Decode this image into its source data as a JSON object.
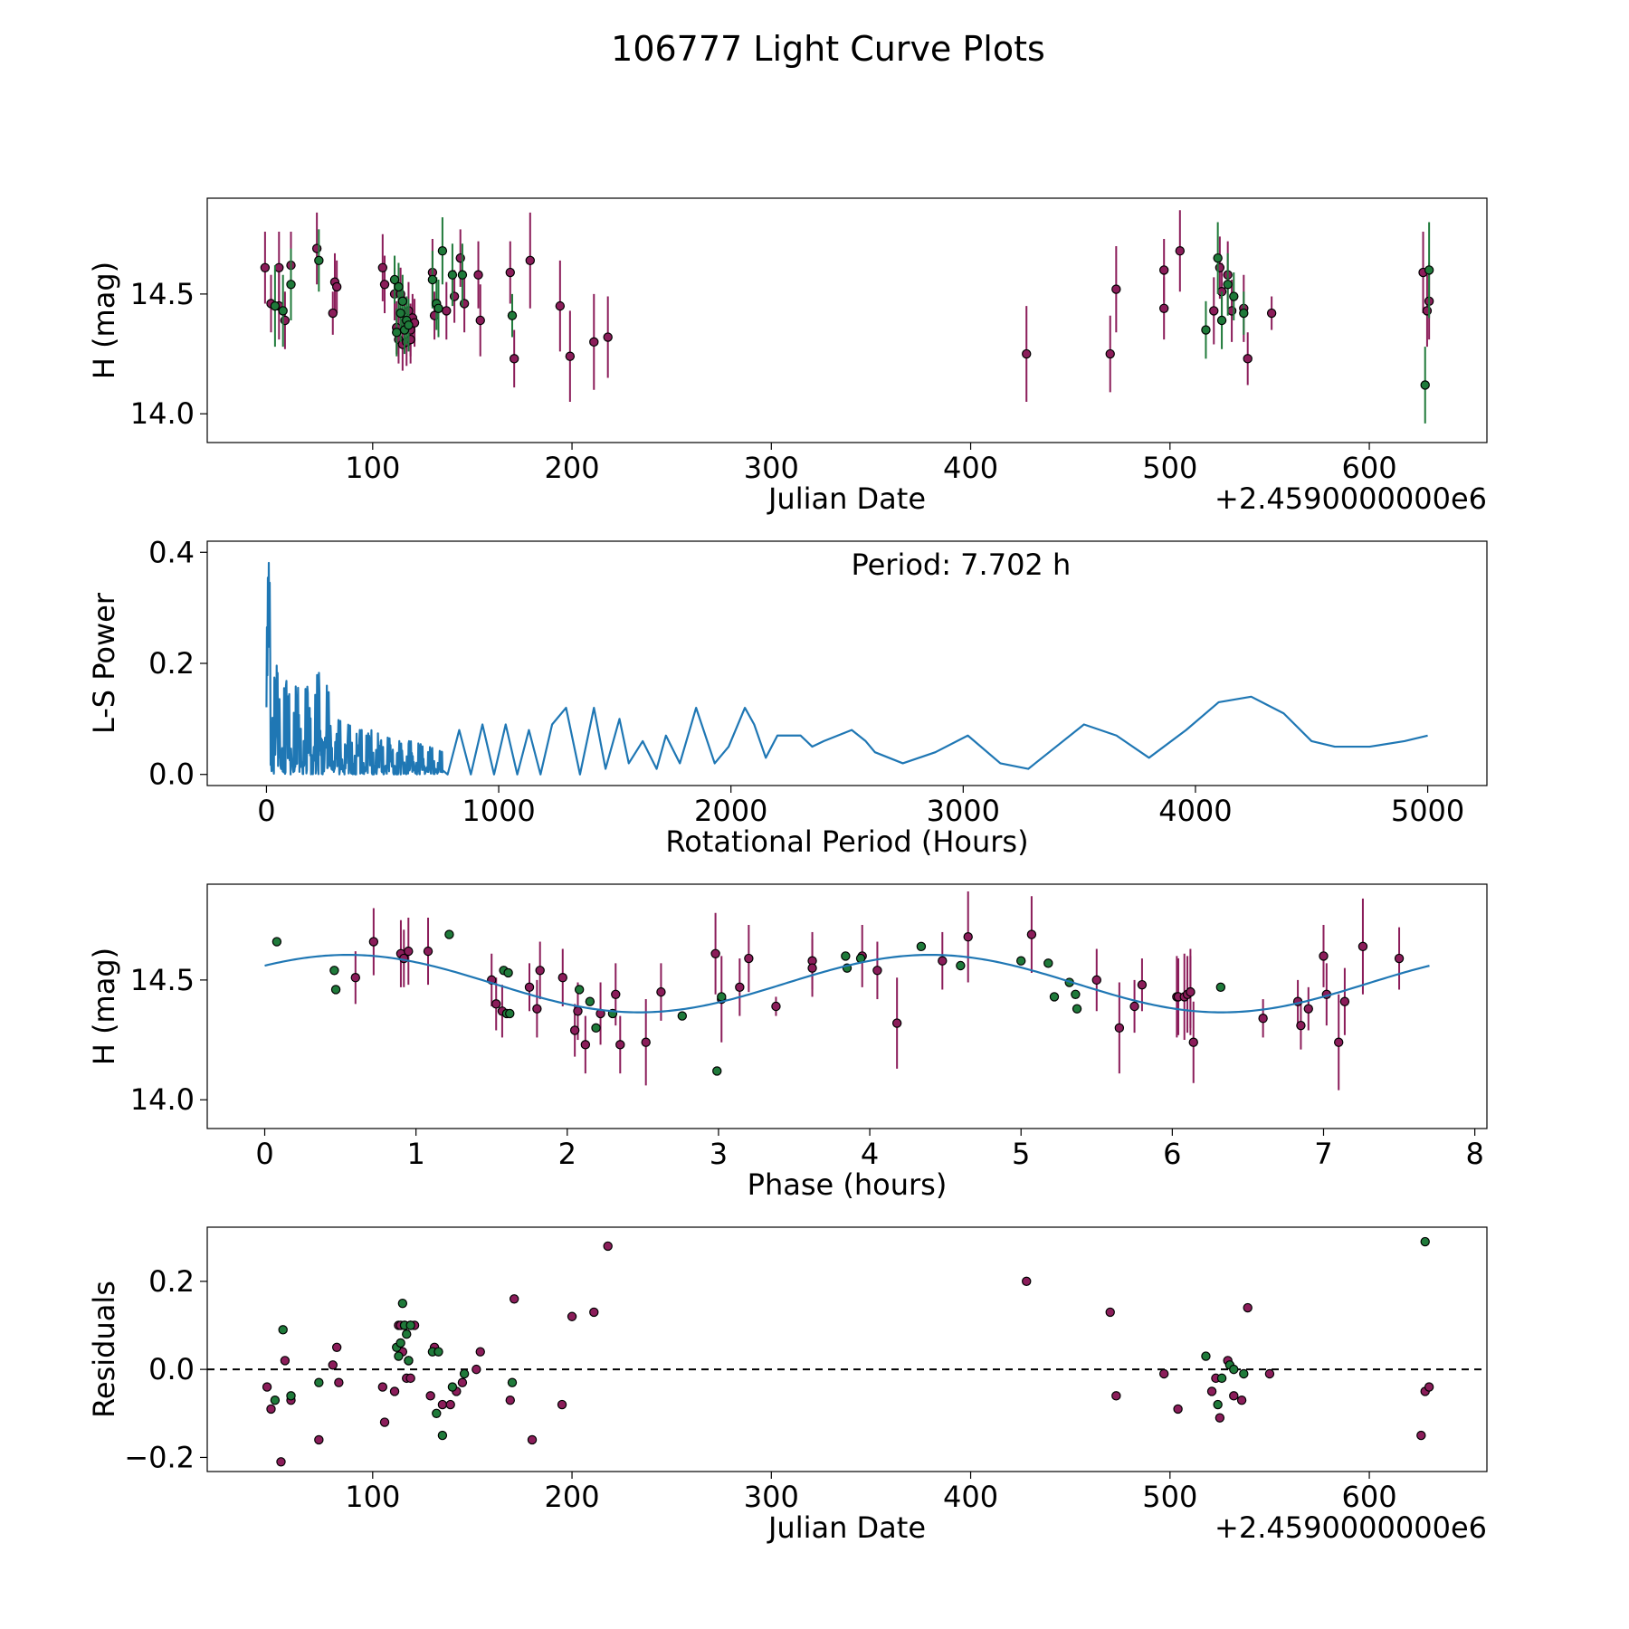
{
  "figure": {
    "title": "106777 Light Curve Plots"
  },
  "chart_data": [
    {
      "type": "scatter",
      "panel": "light-curve",
      "title": "",
      "xlabel": "Julian Date",
      "ylabel": "H (mag)",
      "x_offset_label": "+2.4590000000e6",
      "xlim": [
        17,
        659
      ],
      "ylim": [
        13.88,
        14.9
      ],
      "xticks": [
        100,
        200,
        300,
        400,
        500,
        600
      ],
      "xtick_labels": [
        "100",
        "200",
        "300",
        "400",
        "500",
        "600"
      ],
      "yticks": [
        14.0,
        14.5
      ],
      "ytick_labels": [
        "14.0",
        "14.5"
      ],
      "grid": false,
      "series": [
        {
          "name": "purple",
          "color": "#8b1d5a",
          "x": [
            46,
            49,
            53,
            53,
            56,
            59,
            72,
            80,
            81,
            82,
            105,
            106,
            111,
            112,
            113,
            114,
            115,
            116,
            117,
            118,
            119,
            119,
            120,
            121,
            130,
            131,
            133,
            137,
            141,
            144,
            146,
            153,
            154,
            169,
            171,
            179,
            194,
            199,
            211,
            218,
            428,
            470,
            473,
            497,
            497,
            505,
            522,
            525,
            526,
            529,
            531,
            537,
            539,
            551,
            627,
            629,
            630
          ],
          "y": [
            14.61,
            14.46,
            14.45,
            14.61,
            14.39,
            14.62,
            14.69,
            14.42,
            14.55,
            14.53,
            14.61,
            14.54,
            14.5,
            14.36,
            14.31,
            14.5,
            14.29,
            14.38,
            14.3,
            14.43,
            14.35,
            14.31,
            14.4,
            14.38,
            14.59,
            14.41,
            14.44,
            14.43,
            14.49,
            14.65,
            14.46,
            14.58,
            14.39,
            14.59,
            14.23,
            14.64,
            14.45,
            14.24,
            14.3,
            14.32,
            14.25,
            14.25,
            14.52,
            14.6,
            14.44,
            14.68,
            14.43,
            14.61,
            14.51,
            14.58,
            14.43,
            14.44,
            14.23,
            14.42,
            14.59,
            14.43,
            14.47
          ],
          "yerr": [
            0.15,
            0.12,
            0.14,
            0.15,
            0.12,
            0.14,
            0.15,
            0.09,
            0.12,
            0.11,
            0.14,
            0.12,
            0.11,
            0.11,
            0.1,
            0.11,
            0.11,
            0.11,
            0.1,
            0.12,
            0.11,
            0.1,
            0.1,
            0.1,
            0.14,
            0.1,
            0.12,
            0.12,
            0.11,
            0.12,
            0.12,
            0.14,
            0.15,
            0.13,
            0.12,
            0.2,
            0.19,
            0.19,
            0.2,
            0.17,
            0.2,
            0.16,
            0.18,
            0.13,
            0.13,
            0.17,
            0.14,
            0.13,
            0.12,
            0.14,
            0.13,
            0.14,
            0.11,
            0.07,
            0.17,
            0.15,
            0.16
          ]
        },
        {
          "name": "green",
          "color": "#1f7a3a",
          "x": [
            51,
            55,
            59,
            73,
            111,
            112,
            113,
            114,
            115,
            116,
            117,
            118,
            130,
            132,
            133,
            135,
            140,
            145,
            170,
            518,
            524,
            526,
            529,
            532,
            537,
            628,
            630
          ],
          "y": [
            14.45,
            14.43,
            14.54,
            14.64,
            14.56,
            14.34,
            14.53,
            14.42,
            14.47,
            14.35,
            14.39,
            14.37,
            14.56,
            14.46,
            14.44,
            14.68,
            14.58,
            14.58,
            14.41,
            14.35,
            14.65,
            14.39,
            14.54,
            14.49,
            14.42,
            14.12,
            14.6
          ],
          "yerr": [
            0.17,
            0.15,
            0.15,
            0.13,
            0.1,
            0.1,
            0.1,
            0.12,
            0.11,
            0.1,
            0.1,
            0.11,
            0.12,
            0.11,
            0.12,
            0.14,
            0.13,
            0.13,
            0.09,
            0.12,
            0.15,
            0.12,
            0.13,
            0.1,
            0.09,
            0.16,
            0.2
          ]
        }
      ]
    },
    {
      "type": "line",
      "panel": "periodogram",
      "title": "",
      "xlabel": "Rotational Period (Hours)",
      "ylabel": "L-S Power",
      "annotation": "Period: 7.702 h",
      "xlim": [
        -255,
        5255
      ],
      "ylim": [
        -0.02,
        0.42
      ],
      "xticks": [
        0,
        1000,
        2000,
        3000,
        4000,
        5000
      ],
      "xtick_labels": [
        "0",
        "1000",
        "2000",
        "3000",
        "4000",
        "5000"
      ],
      "yticks": [
        0.0,
        0.2,
        0.4
      ],
      "ytick_labels": [
        "0.0",
        "0.2",
        "0.4"
      ],
      "grid": false,
      "series": [
        {
          "name": "power",
          "color": "#1f77b4",
          "envelope": {
            "x": [
              0,
              8,
              15,
              30,
              50,
              80,
              120,
              160,
              240,
              300,
              350,
              400,
              450,
              500,
              560,
              620,
              700,
              760
            ],
            "y": [
              0.22,
              0.4,
              0.34,
              0.21,
              0.19,
              0.17,
              0.16,
              0.15,
              0.19,
              0.1,
              0.09,
              0.08,
              0.08,
              0.07,
              0.06,
              0.06,
              0.05,
              0.04
            ]
          },
          "x": [
            780,
            830,
            880,
            930,
            980,
            1030,
            1080,
            1130,
            1180,
            1230,
            1290,
            1350,
            1410,
            1460,
            1520,
            1560,
            1620,
            1680,
            1720,
            1780,
            1850,
            1930,
            1990,
            2060,
            2100,
            2150,
            2200,
            2250,
            2300,
            2350,
            2400,
            2460,
            2520,
            2580,
            2620,
            2740,
            2880,
            3020,
            3160,
            3280,
            3400,
            3520,
            3660,
            3800,
            3960,
            4100,
            4240,
            4380,
            4500,
            4600,
            4750,
            4900,
            5000
          ],
          "y": [
            0.0,
            0.08,
            0.0,
            0.09,
            0.0,
            0.09,
            0.0,
            0.08,
            0.0,
            0.09,
            0.12,
            0.0,
            0.12,
            0.01,
            0.1,
            0.02,
            0.06,
            0.01,
            0.07,
            0.02,
            0.12,
            0.02,
            0.05,
            0.12,
            0.09,
            0.03,
            0.07,
            0.07,
            0.07,
            0.05,
            0.06,
            0.07,
            0.08,
            0.06,
            0.04,
            0.02,
            0.04,
            0.07,
            0.02,
            0.01,
            0.05,
            0.09,
            0.07,
            0.03,
            0.08,
            0.13,
            0.14,
            0.11,
            0.06,
            0.05,
            0.05,
            0.06,
            0.07
          ]
        }
      ]
    },
    {
      "type": "scatter",
      "panel": "phase-folded",
      "title": "",
      "xlabel": "Phase (hours)",
      "ylabel": "H (mag)",
      "xlim": [
        -0.38,
        8.08
      ],
      "ylim": [
        13.88,
        14.9
      ],
      "xticks": [
        0,
        1,
        2,
        3,
        4,
        5,
        6,
        7,
        8
      ],
      "xtick_labels": [
        "0",
        "1",
        "2",
        "3",
        "4",
        "5",
        "6",
        "7",
        "8"
      ],
      "yticks": [
        14.0,
        14.5
      ],
      "ytick_labels": [
        "14.0",
        "14.5"
      ],
      "grid": false,
      "model": {
        "name": "fit",
        "color": "#1f77b4",
        "period": 7.702,
        "mean": 14.485,
        "amplitude": 0.12,
        "phase_max": 0.55
      },
      "series": [
        {
          "name": "purple",
          "color": "#8b1d5a",
          "x": [
            0.6,
            0.72,
            0.9,
            0.92,
            0.95,
            1.08,
            1.5,
            1.53,
            1.57,
            1.75,
            1.8,
            1.82,
            1.97,
            2.05,
            2.07,
            2.12,
            2.22,
            2.32,
            2.35,
            2.52,
            2.62,
            2.98,
            3.02,
            3.14,
            3.2,
            3.38,
            3.62,
            3.62,
            3.95,
            4.05,
            4.18,
            4.48,
            4.65,
            5.07,
            5.5,
            5.65,
            5.75,
            5.8,
            6.03,
            6.04,
            6.08,
            6.1,
            6.12,
            6.12,
            6.14,
            6.6,
            6.83,
            6.85,
            6.9,
            7.0,
            7.02,
            7.1,
            7.14,
            7.26,
            7.5
          ],
          "y": [
            14.51,
            14.66,
            14.61,
            14.59,
            14.62,
            14.62,
            14.5,
            14.4,
            14.37,
            14.47,
            14.38,
            14.54,
            14.51,
            14.29,
            14.37,
            14.23,
            14.36,
            14.44,
            14.23,
            14.24,
            14.45,
            14.61,
            14.42,
            14.47,
            14.59,
            14.39,
            14.58,
            14.55,
            14.6,
            14.54,
            14.32,
            14.58,
            14.68,
            14.69,
            14.5,
            14.3,
            14.39,
            14.48,
            14.43,
            14.43,
            14.43,
            14.44,
            14.45,
            14.45,
            14.24,
            14.34,
            14.41,
            14.31,
            14.38,
            14.6,
            14.44,
            14.24,
            14.41,
            14.64,
            14.59
          ],
          "yerr": [
            0.11,
            0.14,
            0.14,
            0.12,
            0.14,
            0.14,
            0.11,
            0.11,
            0.11,
            0.1,
            0.12,
            0.12,
            0.12,
            0.11,
            0.12,
            0.12,
            0.13,
            0.13,
            0.12,
            0.18,
            0.12,
            0.17,
            0.18,
            0.12,
            0.14,
            0.04,
            0.12,
            0.12,
            0.13,
            0.12,
            0.19,
            0.12,
            0.19,
            0.16,
            0.13,
            0.19,
            0.11,
            0.11,
            0.17,
            0.16,
            0.18,
            0.16,
            0.18,
            0.15,
            0.17,
            0.08,
            0.09,
            0.1,
            0.09,
            0.13,
            0.13,
            0.2,
            0.14,
            0.2,
            0.13
          ]
        },
        {
          "name": "green",
          "color": "#1f7a3a",
          "x": [
            0.08,
            0.46,
            0.47,
            1.22,
            1.58,
            1.6,
            1.61,
            1.62,
            2.08,
            2.15,
            2.19,
            2.3,
            2.76,
            2.99,
            3.02,
            3.84,
            3.85,
            3.94,
            4.34,
            4.6,
            5.0,
            5.18,
            5.22,
            5.32,
            5.36,
            5.37,
            6.32
          ],
          "y": [
            14.66,
            14.54,
            14.46,
            14.69,
            14.54,
            14.36,
            14.53,
            14.36,
            14.46,
            14.41,
            14.3,
            14.36,
            14.35,
            14.12,
            14.43,
            14.6,
            14.55,
            14.59,
            14.64,
            14.56,
            14.58,
            14.57,
            14.43,
            14.49,
            14.44,
            14.38,
            14.47
          ]
        }
      ]
    },
    {
      "type": "scatter",
      "panel": "residuals",
      "title": "",
      "xlabel": "Julian Date",
      "ylabel": "Residuals",
      "x_offset_label": "+2.4590000000e6",
      "xlim": [
        17,
        659
      ],
      "ylim": [
        -0.232,
        0.323
      ],
      "xticks": [
        100,
        200,
        300,
        400,
        500,
        600
      ],
      "xtick_labels": [
        "100",
        "200",
        "300",
        "400",
        "500",
        "600"
      ],
      "yticks": [
        -0.2,
        0.0,
        0.2
      ],
      "ytick_labels": [
        "−0.2",
        "0.0",
        "0.2"
      ],
      "grid": false,
      "reference_line": 0.0,
      "series": [
        {
          "name": "purple",
          "color": "#8b1d5a",
          "x": [
            47,
            49,
            54,
            56,
            59,
            73,
            80,
            82,
            83,
            105,
            106,
            111,
            113,
            114,
            115,
            116,
            117,
            118,
            119,
            119,
            121,
            129,
            131,
            135,
            139,
            142,
            145,
            152,
            154,
            169,
            171,
            180,
            195,
            200,
            211,
            218,
            428,
            470,
            473,
            497,
            504,
            521,
            523,
            525,
            529,
            532,
            536,
            539,
            550,
            626,
            628,
            630
          ],
          "y": [
            -0.04,
            -0.09,
            -0.21,
            0.02,
            -0.07,
            -0.16,
            0.01,
            0.05,
            -0.03,
            -0.04,
            -0.12,
            -0.05,
            0.1,
            0.1,
            0.04,
            0.1,
            -0.02,
            0.02,
            0.1,
            -0.02,
            0.1,
            -0.06,
            0.05,
            -0.08,
            -0.08,
            -0.05,
            -0.03,
            0.0,
            0.04,
            -0.07,
            0.16,
            -0.16,
            -0.08,
            0.12,
            0.13,
            0.28,
            0.2,
            0.13,
            -0.06,
            -0.01,
            -0.09,
            -0.05,
            -0.02,
            -0.11,
            0.02,
            -0.06,
            -0.07,
            0.14,
            -0.01,
            -0.15,
            -0.05,
            -0.04
          ]
        },
        {
          "name": "green",
          "color": "#1f7a3a",
          "x": [
            51,
            55,
            59,
            73,
            112,
            113,
            114,
            115,
            116,
            117,
            118,
            119,
            130,
            132,
            133,
            135,
            140,
            146,
            170,
            518,
            524,
            526,
            530,
            532,
            537,
            628
          ],
          "y": [
            -0.07,
            0.09,
            -0.06,
            -0.03,
            0.05,
            0.03,
            0.06,
            0.15,
            0.1,
            0.08,
            0.02,
            0.1,
            0.04,
            -0.1,
            0.04,
            -0.15,
            -0.04,
            -0.01,
            -0.03,
            0.03,
            -0.08,
            -0.02,
            0.01,
            0.0,
            -0.01,
            0.29
          ]
        }
      ]
    }
  ]
}
